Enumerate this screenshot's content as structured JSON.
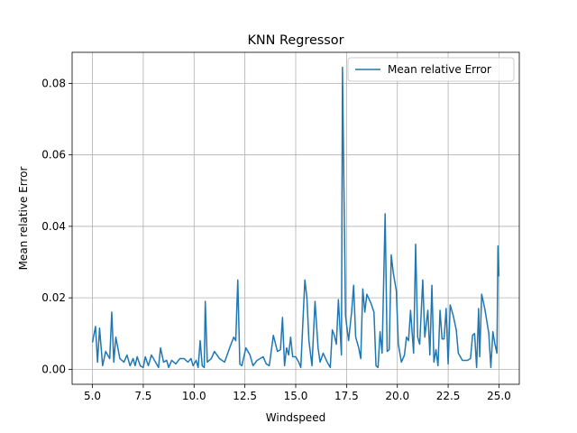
{
  "chart_data": {
    "type": "line",
    "title": "KNN Regressor",
    "x_label": "Windspeed",
    "y_label": "Mean relative Error",
    "x": [
      5.0,
      5.15,
      5.25,
      5.35,
      5.5,
      5.65,
      5.85,
      5.95,
      6.05,
      6.15,
      6.35,
      6.55,
      6.7,
      6.85,
      7.0,
      7.1,
      7.2,
      7.35,
      7.5,
      7.6,
      7.75,
      7.9,
      8.1,
      8.25,
      8.35,
      8.5,
      8.65,
      8.75,
      8.9,
      9.1,
      9.3,
      9.5,
      9.7,
      9.85,
      9.95,
      10.1,
      10.2,
      10.3,
      10.4,
      10.5,
      10.55,
      10.65,
      10.85,
      11.0,
      11.25,
      11.5,
      11.75,
      11.95,
      12.05,
      12.15,
      12.25,
      12.35,
      12.55,
      12.75,
      12.9,
      13.1,
      13.4,
      13.55,
      13.7,
      13.9,
      14.1,
      14.25,
      14.35,
      14.45,
      14.55,
      14.65,
      14.75,
      14.85,
      15.0,
      15.15,
      15.25,
      15.45,
      15.55,
      15.65,
      15.8,
      15.95,
      16.1,
      16.2,
      16.35,
      16.55,
      16.7,
      16.8,
      16.9,
      17.0,
      17.1,
      17.25,
      17.3,
      17.45,
      17.6,
      17.75,
      17.85,
      17.95,
      18.1,
      18.2,
      18.3,
      18.4,
      18.5,
      18.7,
      18.85,
      18.95,
      19.05,
      19.15,
      19.25,
      19.4,
      19.5,
      19.6,
      19.7,
      19.8,
      19.95,
      20.05,
      20.2,
      20.35,
      20.45,
      20.55,
      20.65,
      20.8,
      20.9,
      21.0,
      21.1,
      21.25,
      21.35,
      21.5,
      21.6,
      21.7,
      21.8,
      21.9,
      22.0,
      22.1,
      22.2,
      22.3,
      22.4,
      22.5,
      22.6,
      22.75,
      22.9,
      23.0,
      23.2,
      23.45,
      23.6,
      23.7,
      23.8,
      23.9,
      24.0,
      24.05,
      24.15,
      24.3,
      24.5,
      24.6,
      24.7,
      24.8,
      24.9,
      24.95,
      25.0
    ],
    "series": [
      {
        "name": "Mean relative Error",
        "color": "#1f77b4",
        "values": [
          0.0075,
          0.012,
          0.002,
          0.0115,
          0.001,
          0.005,
          0.003,
          0.016,
          0.002,
          0.009,
          0.003,
          0.002,
          0.004,
          0.001,
          0.003,
          0.001,
          0.0035,
          0.001,
          0.0005,
          0.0035,
          0.001,
          0.004,
          0.002,
          0.0005,
          0.006,
          0.002,
          0.0025,
          0.0005,
          0.0025,
          0.0015,
          0.003,
          0.003,
          0.002,
          0.003,
          0.001,
          0.0025,
          0.0005,
          0.008,
          0.001,
          0.0005,
          0.019,
          0.002,
          0.003,
          0.005,
          0.003,
          0.002,
          0.006,
          0.009,
          0.008,
          0.025,
          0.0015,
          0.001,
          0.006,
          0.004,
          0.001,
          0.0025,
          0.0035,
          0.0015,
          0.001,
          0.0095,
          0.005,
          0.0055,
          0.0145,
          0.001,
          0.006,
          0.004,
          0.009,
          0.0035,
          0.0035,
          0.002,
          0.0005,
          0.025,
          0.02,
          0.008,
          0.001,
          0.019,
          0.006,
          0.002,
          0.0045,
          0.002,
          0.0005,
          0.011,
          0.0095,
          0.007,
          0.0195,
          0.004,
          0.0845,
          0.015,
          0.008,
          0.016,
          0.0235,
          0.009,
          0.006,
          0.003,
          0.0225,
          0.016,
          0.021,
          0.0185,
          0.016,
          0.001,
          0.0005,
          0.0105,
          0.0045,
          0.0435,
          0.005,
          0.0055,
          0.032,
          0.027,
          0.022,
          0.007,
          0.002,
          0.004,
          0.009,
          0.008,
          0.0165,
          0.0045,
          0.035,
          0.009,
          0.007,
          0.025,
          0.009,
          0.0165,
          0.004,
          0.0235,
          0.002,
          0.0055,
          0.001,
          0.0165,
          0.0085,
          0.0085,
          0.017,
          0.0015,
          0.018,
          0.015,
          0.011,
          0.0045,
          0.0025,
          0.0025,
          0.003,
          0.0095,
          0.01,
          0.0005,
          0.017,
          0.0035,
          0.021,
          0.017,
          0.01,
          0.0005,
          0.0105,
          0.007,
          0.0045,
          0.0345,
          0.026
        ]
      }
    ],
    "xlim": [
      4,
      26
    ],
    "xticks": [
      {
        "value": 5,
        "label": "5.0"
      },
      7.5,
      {
        "value": 10,
        "label": "10.0"
      },
      12.5,
      {
        "value": 15,
        "label": "15.0"
      },
      17.5,
      {
        "value": 20,
        "label": "20.0"
      },
      22.5,
      {
        "value": 25,
        "label": "25.0"
      }
    ],
    "ylim": [
      -0.0042,
      0.0887
    ],
    "yticks": [
      {
        "value": 0,
        "label": "0.00"
      },
      0.02,
      0.04,
      0.06,
      0.08
    ],
    "grid": true,
    "legend": "upper-right"
  }
}
